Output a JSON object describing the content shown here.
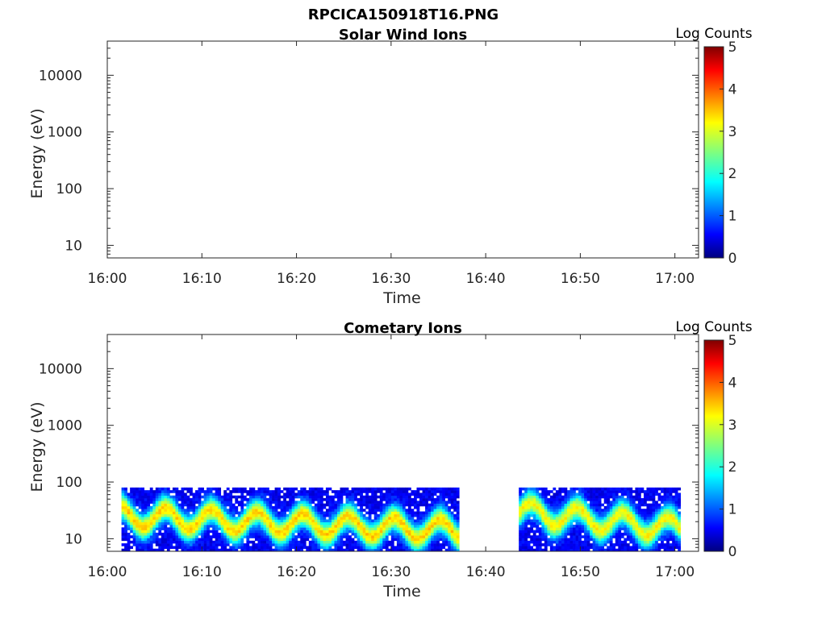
{
  "figure_title": "RPCICA150918T16.PNG",
  "chart_data": [
    {
      "type": "heatmap",
      "title": "Solar Wind Ions",
      "xlabel": "Time",
      "ylabel": "Energy (eV)",
      "x_ticks": [
        "16:00",
        "16:10",
        "16:20",
        "16:30",
        "16:40",
        "16:50",
        "17:00"
      ],
      "y_ticks": [
        "10",
        "100",
        "1000",
        "10000"
      ],
      "y_scale": "log",
      "ylim": [
        6,
        40000
      ],
      "colorbar_label": "Log Counts",
      "colorbar_ticks": [
        "0",
        "1",
        "2",
        "3",
        "4",
        "5"
      ],
      "colorbar_range": [
        0,
        5
      ],
      "colormap": "jet",
      "segments": []
    },
    {
      "type": "heatmap",
      "title": "Cometary Ions",
      "xlabel": "Time",
      "ylabel": "Energy (eV)",
      "x_ticks": [
        "16:00",
        "16:10",
        "16:20",
        "16:30",
        "16:40",
        "16:50",
        "17:00"
      ],
      "y_ticks": [
        "10",
        "100",
        "1000",
        "10000"
      ],
      "y_scale": "log",
      "ylim": [
        6,
        40000
      ],
      "colorbar_label": "Log Counts",
      "colorbar_ticks": [
        "0",
        "1",
        "2",
        "3",
        "4",
        "5"
      ],
      "colorbar_range": [
        0,
        5
      ],
      "colormap": "jet",
      "segments": [
        {
          "t_start_min": 1.5,
          "t_end_min": 37.0,
          "e_min_ev": 6,
          "e_max_ev": 80,
          "peak_ev_start": 25,
          "peak_ev_end": 14,
          "peak_log_counts": 2.8
        },
        {
          "t_start_min": 43.5,
          "t_end_min": 60.5,
          "e_min_ev": 6,
          "e_max_ev": 80,
          "peak_ev_start": 30,
          "peak_ev_end": 15,
          "peak_log_counts": 2.6
        }
      ]
    }
  ]
}
